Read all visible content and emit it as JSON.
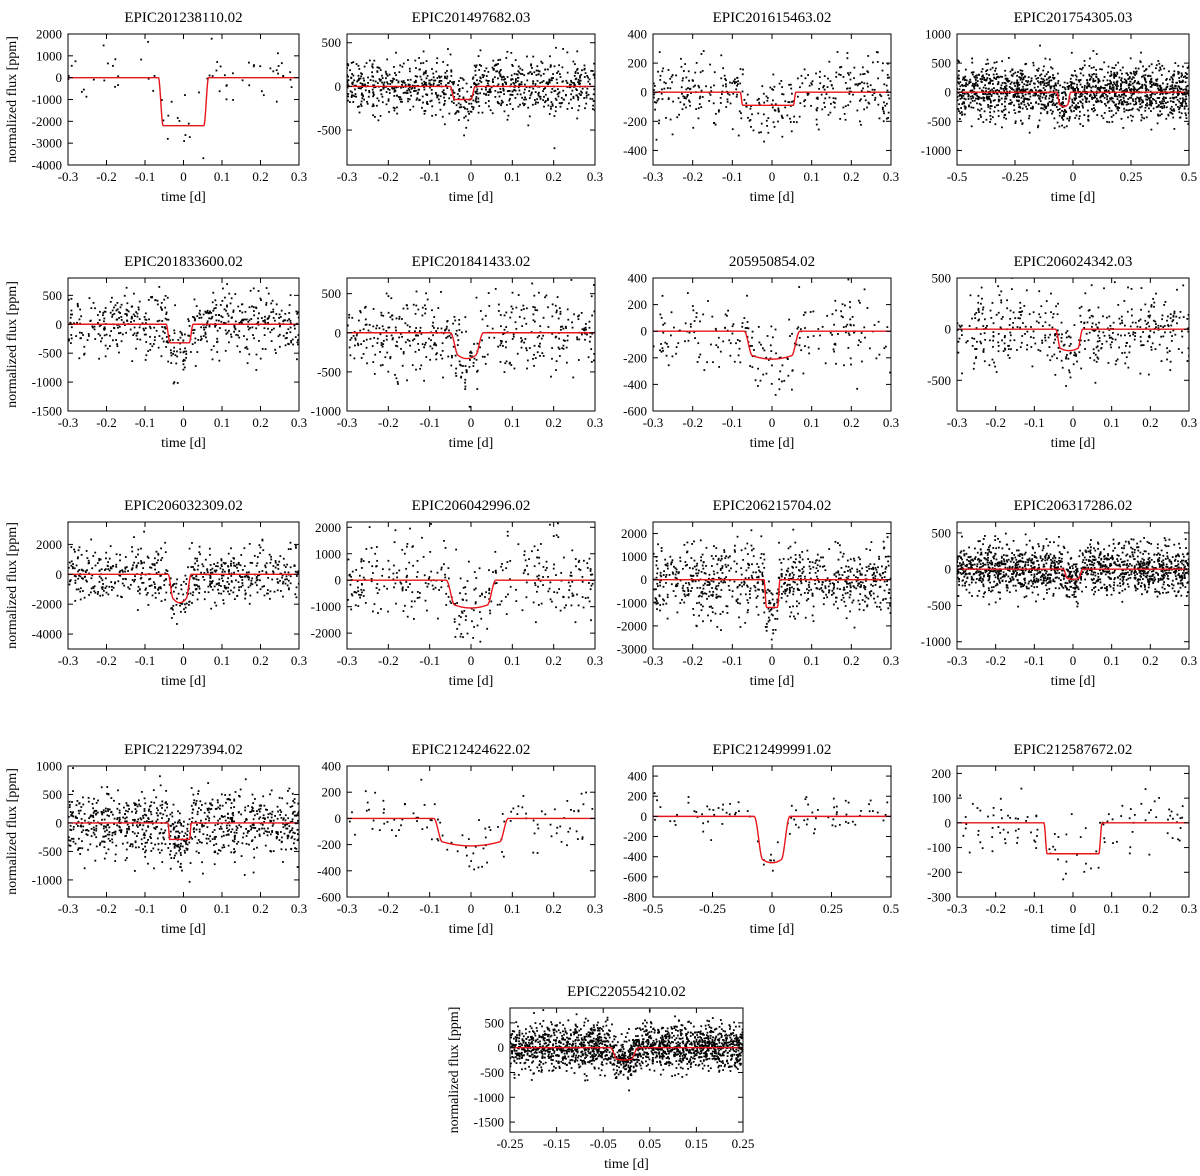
{
  "figure": {
    "xlabel": "time [d]",
    "ylabel": "normalized flux [ppm]",
    "points_color": "#000000",
    "model_color": "#e8141a"
  },
  "chart_data": [
    {
      "type": "scatter",
      "title": "EPIC201238110.02",
      "xlim": [
        -0.3,
        0.3
      ],
      "ylim": [
        -4000,
        2000
      ],
      "xticks": [
        -0.3,
        -0.2,
        -0.1,
        0,
        0.1,
        0.2,
        0.3
      ],
      "xtick_labels": [
        "-0.3",
        "-0.2",
        "-0.1",
        "0",
        "0.1",
        "0.2",
        "0.3"
      ],
      "yticks": [
        2000,
        1000,
        0,
        -1000,
        -2000,
        -3000,
        -4000
      ],
      "ytick_labels": [
        "2000",
        "1000",
        "0",
        "-1000",
        "-2000",
        "-3000",
        "-4000"
      ],
      "ylabel_shown": true,
      "n_points": 70,
      "noise": 700,
      "seed": 11,
      "model": {
        "center": 0,
        "half_width": 0.065,
        "ingress": 0.012,
        "depth": 2200,
        "shape": "flat"
      }
    },
    {
      "type": "scatter",
      "title": "EPIC201497682.03",
      "xlim": [
        -0.3,
        0.3
      ],
      "ylim": [
        -900,
        600
      ],
      "xticks": [
        -0.3,
        -0.2,
        -0.1,
        0,
        0.1,
        0.2,
        0.3
      ],
      "xtick_labels": [
        "-0.3",
        "-0.2",
        "-0.1",
        "0",
        "0.1",
        "0.2",
        "0.3"
      ],
      "yticks": [
        500,
        0,
        -500
      ],
      "ytick_labels": [
        "500",
        "0",
        "-500"
      ],
      "ylabel_shown": false,
      "n_points": 900,
      "noise": 150,
      "seed": 12,
      "model": {
        "center": -0.02,
        "half_width": 0.03,
        "ingress": 0.01,
        "depth": 150,
        "shape": "flat"
      }
    },
    {
      "type": "scatter",
      "title": "EPIC201615463.02",
      "xlim": [
        -0.3,
        0.3
      ],
      "ylim": [
        -500,
        400
      ],
      "xticks": [
        -0.3,
        -0.2,
        -0.1,
        0,
        0.1,
        0.2,
        0.3
      ],
      "xtick_labels": [
        "-0.3",
        "-0.2",
        "-0.1",
        "0",
        "0.1",
        "0.2",
        "0.3"
      ],
      "yticks": [
        400,
        200,
        0,
        -200,
        -400
      ],
      "ytick_labels": [
        "400",
        "200",
        "0",
        "-200",
        "-400"
      ],
      "ylabel_shown": false,
      "n_points": 400,
      "noise": 120,
      "seed": 13,
      "model": {
        "center": -0.01,
        "half_width": 0.07,
        "ingress": 0.006,
        "depth": 90,
        "shape": "flat"
      }
    },
    {
      "type": "scatter",
      "title": "EPIC201754305.03",
      "xlim": [
        -0.5,
        0.5
      ],
      "ylim": [
        -1250,
        1000
      ],
      "xticks": [
        -0.5,
        -0.25,
        0,
        0.25,
        0.5
      ],
      "xtick_labels": [
        "-0.5",
        "-0.25",
        "0",
        "0.25",
        "0.5"
      ],
      "yticks": [
        1000,
        500,
        0,
        -500,
        -1000
      ],
      "ytick_labels": [
        "1000",
        "500",
        "0",
        "-500",
        "-1000"
      ],
      "ylabel_shown": false,
      "n_points": 1500,
      "noise": 230,
      "seed": 14,
      "model": {
        "center": -0.04,
        "half_width": 0.03,
        "ingress": 0.012,
        "depth": 250,
        "shape": "v"
      }
    },
    {
      "type": "scatter",
      "title": "EPIC201833600.02",
      "xlim": [
        -0.3,
        0.3
      ],
      "ylim": [
        -1500,
        800
      ],
      "xticks": [
        -0.3,
        -0.2,
        -0.1,
        0,
        0.1,
        0.2,
        0.3
      ],
      "xtick_labels": [
        "-0.3",
        "-0.2",
        "-0.1",
        "0",
        "0.1",
        "0.2",
        "0.3"
      ],
      "yticks": [
        500,
        0,
        -500,
        -1000,
        -1500
      ],
      "ytick_labels": [
        "500",
        "0",
        "-500",
        "-1000",
        "-1500"
      ],
      "ylabel_shown": true,
      "n_points": 550,
      "noise": 280,
      "seed": 15,
      "model": {
        "center": -0.01,
        "half_width": 0.035,
        "ingress": 0.01,
        "depth": 320,
        "shape": "flat"
      }
    },
    {
      "type": "scatter",
      "title": "EPIC201841433.02",
      "xlim": [
        -0.3,
        0.3
      ],
      "ylim": [
        -1000,
        700
      ],
      "xticks": [
        -0.3,
        -0.2,
        -0.1,
        0,
        0.1,
        0.2,
        0.3
      ],
      "xtick_labels": [
        "-0.3",
        "-0.2",
        "-0.1",
        "0",
        "0.1",
        "0.2",
        "0.3"
      ],
      "yticks": [
        500,
        0,
        -500,
        -1000
      ],
      "ytick_labels": [
        "500",
        "0",
        "-500",
        "-1000"
      ],
      "ylabel_shown": false,
      "n_points": 450,
      "noise": 260,
      "seed": 16,
      "model": {
        "center": -0.01,
        "half_width": 0.04,
        "ingress": 0.018,
        "depth": 330,
        "shape": "v"
      }
    },
    {
      "type": "scatter",
      "title": "205950854.02",
      "xlim": [
        -0.3,
        0.3
      ],
      "ylim": [
        -600,
        400
      ],
      "xticks": [
        -0.3,
        -0.2,
        -0.1,
        0,
        0.1,
        0.2,
        0.3
      ],
      "xtick_labels": [
        "-0.3",
        "-0.2",
        "-0.1",
        "0",
        "0.1",
        "0.2",
        "0.3"
      ],
      "yticks": [
        400,
        200,
        0,
        -200,
        -400,
        -600
      ],
      "ytick_labels": [
        "400",
        "200",
        "0",
        "-200",
        "-400",
        "-600"
      ],
      "ylabel_shown": false,
      "n_points": 230,
      "noise": 150,
      "seed": 17,
      "model": {
        "center": 0,
        "half_width": 0.07,
        "ingress": 0.02,
        "depth": 210,
        "shape": "round"
      }
    },
    {
      "type": "scatter",
      "title": "EPIC206024342.03",
      "xlim": [
        -0.3,
        0.3
      ],
      "ylim": [
        -800,
        500
      ],
      "xticks": [
        -0.3,
        -0.2,
        -0.1,
        0,
        0.1,
        0.2,
        0.3
      ],
      "xtick_labels": [
        "-0.3",
        "-0.2",
        "-0.1",
        "0",
        "0.1",
        "0.2",
        "0.3"
      ],
      "yticks": [
        500,
        0,
        -500
      ],
      "ytick_labels": [
        "500",
        "0",
        "-500"
      ],
      "ylabel_shown": false,
      "n_points": 450,
      "noise": 180,
      "seed": 18,
      "model": {
        "center": -0.01,
        "half_width": 0.035,
        "ingress": 0.012,
        "depth": 210,
        "shape": "round"
      }
    },
    {
      "type": "scatter",
      "title": "EPIC206032309.02",
      "xlim": [
        -0.3,
        0.3
      ],
      "ylim": [
        -5000,
        3500
      ],
      "xticks": [
        -0.3,
        -0.2,
        -0.1,
        0,
        0.1,
        0.2,
        0.3
      ],
      "xtick_labels": [
        "-0.3",
        "-0.2",
        "-0.1",
        "0",
        "0.1",
        "0.2",
        "0.3"
      ],
      "yticks": [
        2000,
        0,
        -2000,
        -4000
      ],
      "ytick_labels": [
        "2000",
        "0",
        "-2000",
        "-4000"
      ],
      "ylabel_shown": true,
      "n_points": 600,
      "noise": 950,
      "seed": 19,
      "model": {
        "center": -0.01,
        "half_width": 0.03,
        "ingress": 0.012,
        "depth": 1900,
        "shape": "v"
      }
    },
    {
      "type": "scatter",
      "title": "EPIC206042996.02",
      "xlim": [
        -0.3,
        0.3
      ],
      "ylim": [
        -2600,
        2200
      ],
      "xticks": [
        -0.3,
        -0.2,
        -0.1,
        0,
        0.1,
        0.2,
        0.3
      ],
      "xtick_labels": [
        "-0.3",
        "-0.2",
        "-0.1",
        "0",
        "0.1",
        "0.2",
        "0.3"
      ],
      "yticks": [
        2000,
        1000,
        0,
        -1000,
        -2000
      ],
      "ytick_labels": [
        "2000",
        "1000",
        "0",
        "-1000",
        "-2000"
      ],
      "ylabel_shown": false,
      "n_points": 350,
      "noise": 700,
      "seed": 20,
      "model": {
        "center": 0,
        "half_width": 0.06,
        "ingress": 0.02,
        "depth": 1050,
        "shape": "round"
      }
    },
    {
      "type": "scatter",
      "title": "EPIC206215704.02",
      "xlim": [
        -0.3,
        0.3
      ],
      "ylim": [
        -3000,
        2500
      ],
      "xticks": [
        -0.3,
        -0.2,
        -0.1,
        0,
        0.1,
        0.2,
        0.3
      ],
      "xtick_labels": [
        "-0.3",
        "-0.2",
        "-0.1",
        "0",
        "0.1",
        "0.2",
        "0.3"
      ],
      "yticks": [
        2000,
        1000,
        0,
        -1000,
        -2000,
        -3000
      ],
      "ytick_labels": [
        "2000",
        "1000",
        "0",
        "-1000",
        "-2000",
        "-3000"
      ],
      "ylabel_shown": false,
      "n_points": 800,
      "noise": 750,
      "seed": 21,
      "model": {
        "center": 0,
        "half_width": 0.02,
        "ingress": 0.006,
        "depth": 1200,
        "shape": "flat"
      }
    },
    {
      "type": "scatter",
      "title": "EPIC206317286.02",
      "xlim": [
        -0.3,
        0.3
      ],
      "ylim": [
        -1100,
        650
      ],
      "xticks": [
        -0.3,
        -0.2,
        -0.1,
        0,
        0.1,
        0.2,
        0.3
      ],
      "xtick_labels": [
        "-0.3",
        "-0.2",
        "-0.1",
        "0",
        "0.1",
        "0.2",
        "0.3"
      ],
      "yticks": [
        500,
        0,
        -500,
        -1000
      ],
      "ytick_labels": [
        "500",
        "0",
        "-500",
        "-1000"
      ],
      "ylabel_shown": false,
      "n_points": 1400,
      "noise": 170,
      "seed": 22,
      "model": {
        "center": 0,
        "half_width": 0.025,
        "ingress": 0.01,
        "depth": 140,
        "shape": "round"
      }
    },
    {
      "type": "scatter",
      "title": "EPIC212297394.02",
      "xlim": [
        -0.3,
        0.3
      ],
      "ylim": [
        -1300,
        1000
      ],
      "xticks": [
        -0.3,
        -0.2,
        -0.1,
        0,
        0.1,
        0.2,
        0.3
      ],
      "xtick_labels": [
        "-0.3",
        "-0.2",
        "-0.1",
        "0",
        "0.1",
        "0.2",
        "0.3"
      ],
      "yticks": [
        1000,
        500,
        0,
        -500,
        -1000
      ],
      "ytick_labels": [
        "1000",
        "500",
        "0",
        "-500",
        "-1000"
      ],
      "ylabel_shown": true,
      "n_points": 850,
      "noise": 280,
      "seed": 23,
      "model": {
        "center": -0.01,
        "half_width": 0.03,
        "ingress": 0.004,
        "depth": 290,
        "shape": "flat"
      }
    },
    {
      "type": "scatter",
      "title": "EPIC212424622.02",
      "xlim": [
        -0.3,
        0.3
      ],
      "ylim": [
        -600,
        400
      ],
      "xticks": [
        -0.3,
        -0.2,
        -0.1,
        0,
        0.1,
        0.2,
        0.3
      ],
      "xtick_labels": [
        "-0.3",
        "-0.2",
        "-0.1",
        "0",
        "0.1",
        "0.2",
        "0.3"
      ],
      "yticks": [
        400,
        200,
        0,
        -200,
        -400,
        -600
      ],
      "ytick_labels": [
        "400",
        "200",
        "0",
        "-200",
        "-400",
        "-600"
      ],
      "ylabel_shown": false,
      "n_points": 110,
      "noise": 110,
      "seed": 24,
      "model": {
        "center": 0,
        "half_width": 0.09,
        "ingress": 0.02,
        "depth": 210,
        "shape": "round"
      }
    },
    {
      "type": "scatter",
      "title": "EPIC212499991.02",
      "xlim": [
        -0.5,
        0.5
      ],
      "ylim": [
        -800,
        500
      ],
      "xticks": [
        -0.5,
        -0.25,
        0,
        0.25,
        0.5
      ],
      "xtick_labels": [
        "-0.5",
        "-0.25",
        "0",
        "0.25",
        "0.5"
      ],
      "yticks": [
        400,
        200,
        0,
        -200,
        -400,
        -600,
        -800
      ],
      "ytick_labels": [
        "400",
        "200",
        "0",
        "-200",
        "-400",
        "-600",
        "-800"
      ],
      "ylabel_shown": false,
      "n_points": 90,
      "noise": 100,
      "seed": 25,
      "model": {
        "center": 0,
        "half_width": 0.075,
        "ingress": 0.035,
        "depth": 460,
        "shape": "round"
      }
    },
    {
      "type": "scatter",
      "title": "EPIC212587672.02",
      "xlim": [
        -0.3,
        0.3
      ],
      "ylim": [
        -300,
        230
      ],
      "xticks": [
        -0.3,
        -0.2,
        -0.1,
        0,
        0.1,
        0.2,
        0.3
      ],
      "xtick_labels": [
        "-0.3",
        "-0.2",
        "-0.1",
        "0",
        "0.1",
        "0.2",
        "0.3"
      ],
      "yticks": [
        200,
        100,
        0,
        -100,
        -200,
        -300
      ],
      "ytick_labels": [
        "200",
        "100",
        "0",
        "-100",
        "-200",
        "-300"
      ],
      "ylabel_shown": false,
      "n_points": 110,
      "noise": 60,
      "seed": 26,
      "model": {
        "center": 0,
        "half_width": 0.075,
        "ingress": 0.008,
        "depth": 125,
        "shape": "flat"
      }
    },
    {
      "type": "scatter",
      "title": "EPIC220554210.02",
      "xlim": [
        -0.25,
        0.25
      ],
      "ylim": [
        -1700,
        800
      ],
      "xticks": [
        -0.25,
        -0.15,
        -0.05,
        0.05,
        0.15,
        0.25
      ],
      "xtick_labels": [
        "-0.25",
        "-0.15",
        "-0.05",
        "0.05",
        "0.15",
        "0.25"
      ],
      "yticks": [
        500,
        0,
        -500,
        -1000,
        -1500
      ],
      "ytick_labels": [
        "500",
        "0",
        "-500",
        "-1000",
        "-1500"
      ],
      "ylabel_shown": true,
      "n_points": 1800,
      "noise": 230,
      "seed": 27,
      "model": {
        "center": -0.005,
        "half_width": 0.03,
        "ingress": 0.015,
        "depth": 250,
        "shape": "round"
      }
    }
  ]
}
